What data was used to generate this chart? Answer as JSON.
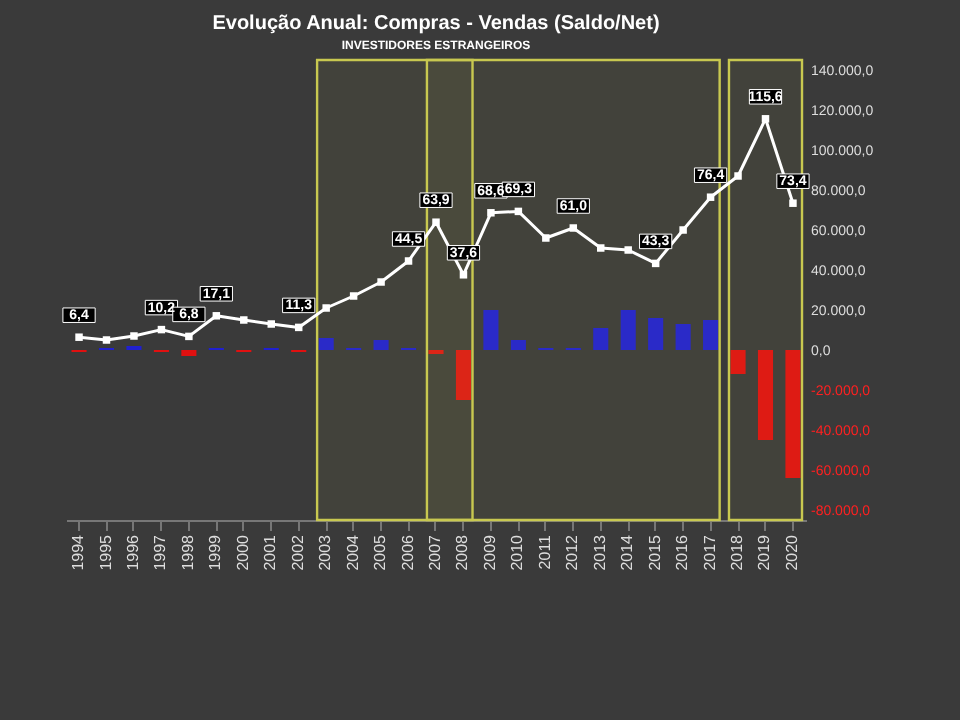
{
  "chart_data": {
    "type": "bar",
    "title": "Evolução Anual: Compras - Vendas (Saldo/Net)",
    "subtitle": "INVESTIDORES ESTRANGEIROS",
    "categories": [
      "1994",
      "1995",
      "1996",
      "1997",
      "1998",
      "1999",
      "2000",
      "2001",
      "2002",
      "2003",
      "2004",
      "2005",
      "2006",
      "2007",
      "2008",
      "2009",
      "2010",
      "2011",
      "2012",
      "2013",
      "2014",
      "2015",
      "2016",
      "2017",
      "2018",
      "2019",
      "2020"
    ],
    "series": [
      {
        "colors": [
          "#e01010",
          "#2020d0",
          "#2020d0",
          "#e01010",
          "#e01010",
          "#2020d0",
          "#e01010",
          "#2020d0",
          "#e01010",
          "#2020d0",
          "#2020d0",
          "#2020d0",
          "#2020d0",
          "#e01010",
          "#e01010",
          "#2020d0",
          "#2020d0",
          "#2020d0",
          "#2020d0",
          "#2020d0",
          "#2020d0",
          "#2020d0",
          "#2020d0",
          "#2020d0",
          "#e01010",
          "#e01010",
          "#e01010"
        ],
        "values": [
          -1000,
          1000,
          2000,
          -1000,
          -3000,
          1000,
          -1000,
          1000,
          -1000,
          6000,
          1000,
          5000,
          1000,
          -2000,
          -25000,
          20000,
          5000,
          1000,
          1000,
          11000,
          20000,
          16000,
          13000,
          15000,
          -12000,
          -45000,
          -64000
        ]
      },
      {
        "type": "line",
        "axis": "y2",
        "color": "#ffffff",
        "values": [
          6.4,
          5,
          7,
          10.2,
          6.8,
          17.1,
          15,
          13,
          11.3,
          21,
          27,
          34,
          44.5,
          63.9,
          37.6,
          68.6,
          69.3,
          56,
          61.0,
          51,
          50,
          43.3,
          60,
          76.4,
          87,
          115.6,
          73.4
        ],
        "value_labels": [
          "6,4",
          null,
          null,
          "10,2",
          "6,8",
          "17,1",
          null,
          null,
          "11,3",
          null,
          null,
          null,
          "44,5",
          "63,9",
          "37,6",
          "68,6",
          "69,3",
          null,
          "61,0",
          null,
          null,
          "43,3",
          null,
          "76,4",
          null,
          "115,6",
          "73,4"
        ]
      }
    ],
    "ylim": [
      -85000,
      145000
    ],
    "yticks": [
      {
        "value": -80000,
        "label": "-80.000,0"
      },
      {
        "value": -60000,
        "label": "-60.000,0"
      },
      {
        "value": -40000,
        "label": "-40.000,0"
      },
      {
        "value": -20000,
        "label": "-20.000,0"
      },
      {
        "value": 0,
        "label": "0,0"
      },
      {
        "value": 20000,
        "label": "20.000,0"
      },
      {
        "value": 40000,
        "label": "40.000,0"
      },
      {
        "value": 60000,
        "label": "60.000,0"
      },
      {
        "value": 80000,
        "label": "80.000,0"
      },
      {
        "value": 100000,
        "label": "100.000,0"
      },
      {
        "value": 120000,
        "label": "120.000,0"
      },
      {
        "value": 140000,
        "label": "140.000,0"
      }
    ],
    "y2lim": [
      -85,
      145
    ],
    "bands": [
      {
        "axis": "x",
        "from": "2003",
        "to": "2017",
        "color": "#c8c850"
      },
      {
        "axis": "x",
        "from": "2007",
        "to": "2008",
        "color": "#c8c850"
      },
      {
        "axis": "x",
        "from": "2018",
        "to": "2020",
        "color": "#c8c850"
      }
    ],
    "marker": "square",
    "grid": false
  }
}
